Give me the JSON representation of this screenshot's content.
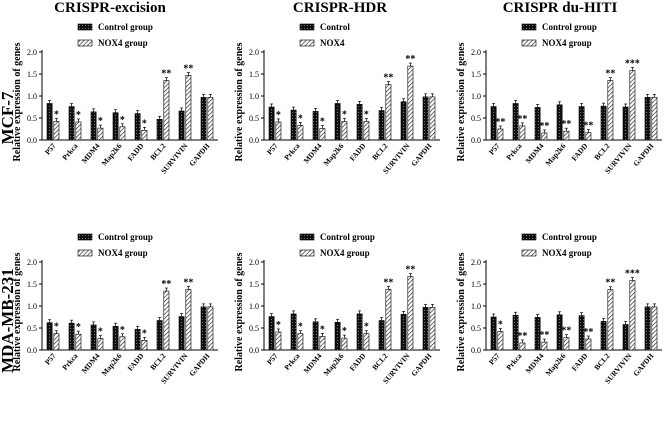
{
  "figure": {
    "column_titles": [
      "CRISPR-excision",
      "CRISPR-HDR",
      "CRISPR du-HITI"
    ],
    "row_labels": [
      "MCF-7",
      "MDA-MB-231"
    ]
  },
  "chart_data": [
    {
      "id": "mcf7-excision",
      "type": "bar",
      "title": "CRISPR-excision",
      "row": "MCF-7",
      "ylabel": "Relative expression of genes",
      "ylim": [
        0,
        2.0
      ],
      "yticks": [
        "0.0",
        "0.5",
        "1.0",
        "1.5",
        "2.0"
      ],
      "categories": [
        "P57",
        "Prkca",
        "MDM4",
        "Map2k6",
        "FADD",
        "BCL2",
        "SURVIVIN",
        "GAPDH"
      ],
      "series": [
        {
          "name": "Control group",
          "values": [
            0.83,
            0.76,
            0.64,
            0.62,
            0.6,
            0.47,
            0.66,
            0.97
          ]
        },
        {
          "name": "NOX4 group",
          "values": [
            0.42,
            0.41,
            0.27,
            0.3,
            0.22,
            1.35,
            1.47,
            0.97
          ]
        }
      ],
      "significance": [
        "*",
        "*",
        "*",
        "*",
        "*",
        "**",
        "**",
        ""
      ]
    },
    {
      "id": "mcf7-hdr",
      "type": "bar",
      "title": "CRISPR-HDR",
      "row": "MCF-7",
      "ylabel": "Relative expression of genes",
      "ylim": [
        0,
        2.0
      ],
      "yticks": [
        "0.0",
        "0.5",
        "1.0",
        "1.5",
        "2.0"
      ],
      "categories": [
        "P57",
        "Prkca",
        "MDM4",
        "Map2k6",
        "FADD",
        "BCL2",
        "SURVIVIN",
        "GAPDH"
      ],
      "series": [
        {
          "name": "Control",
          "values": [
            0.75,
            0.68,
            0.65,
            0.83,
            0.81,
            0.67,
            0.87,
            0.98
          ]
        },
        {
          "name": "NOX4",
          "values": [
            0.41,
            0.33,
            0.26,
            0.42,
            0.42,
            1.26,
            1.68,
            0.98
          ]
        }
      ],
      "significance": [
        "*",
        "*",
        "*",
        "*",
        "*",
        "**",
        "**",
        ""
      ]
    },
    {
      "id": "mcf7-duhiti",
      "type": "bar",
      "title": "CRISPR du-HITI",
      "row": "MCF-7",
      "ylabel": "Relative expression of genes",
      "ylim": [
        0,
        2.0
      ],
      "yticks": [
        "0.0",
        "0.5",
        "1.0",
        "1.5",
        "2.0"
      ],
      "categories": [
        "P57",
        "Prkca",
        "MDM4",
        "Map2k6",
        "FADD",
        "BCL2",
        "SURVIVIN",
        "GAPDH"
      ],
      "series": [
        {
          "name": "Control group",
          "values": [
            0.76,
            0.83,
            0.74,
            0.8,
            0.76,
            0.77,
            0.75,
            0.97
          ]
        },
        {
          "name": "NOX4 group",
          "values": [
            0.25,
            0.32,
            0.16,
            0.2,
            0.17,
            1.35,
            1.58,
            0.97
          ]
        }
      ],
      "significance": [
        "**",
        "**",
        "**",
        "**",
        "**",
        "**",
        "***",
        ""
      ]
    },
    {
      "id": "mda-excision",
      "type": "bar",
      "title": "CRISPR-excision",
      "row": "MDA-MB-231",
      "ylabel": "Relative expression of genes",
      "ylim": [
        0,
        2.0
      ],
      "yticks": [
        "0.0",
        "0.5",
        "1.0",
        "1.5",
        "2.0"
      ],
      "categories": [
        "P57",
        "Prkca",
        "MDM4",
        "Map2k6",
        "FADD",
        "BCL2",
        "SURVIVIN",
        "GAPDH"
      ],
      "series": [
        {
          "name": "Control group",
          "values": [
            0.62,
            0.61,
            0.57,
            0.54,
            0.47,
            0.67,
            0.76,
            0.98
          ]
        },
        {
          "name": "NOX4 group",
          "values": [
            0.37,
            0.36,
            0.26,
            0.3,
            0.22,
            1.34,
            1.38,
            0.98
          ]
        }
      ],
      "significance": [
        "*",
        "*",
        "*",
        "*",
        "*",
        "**",
        "**",
        ""
      ]
    },
    {
      "id": "mda-hdr",
      "type": "bar",
      "title": "CRISPR-HDR",
      "row": "MDA-MB-231",
      "ylabel": "Relative expression of genes",
      "ylim": [
        0,
        2.0
      ],
      "yticks": [
        "0.0",
        "0.5",
        "1.0",
        "1.5",
        "2.0"
      ],
      "categories": [
        "P57",
        "Prkca",
        "MDM4",
        "Map2k6",
        "FADD",
        "BCL2",
        "SURVIVIN",
        "GAPDH"
      ],
      "series": [
        {
          "name": "Control group",
          "values": [
            0.76,
            0.82,
            0.64,
            0.63,
            0.82,
            0.67,
            0.81,
            0.97
          ]
        },
        {
          "name": "NOX4 group",
          "values": [
            0.41,
            0.37,
            0.31,
            0.27,
            0.37,
            1.38,
            1.67,
            0.97
          ]
        }
      ],
      "significance": [
        "*",
        "*",
        "*",
        "*",
        "*",
        "**",
        "**",
        ""
      ]
    },
    {
      "id": "mda-duhiti",
      "type": "bar",
      "title": "CRISPR du-HITI",
      "row": "MDA-MB-231",
      "ylabel": "Relative expression of genes",
      "ylim": [
        0,
        2.0
      ],
      "yticks": [
        "0.0",
        "0.5",
        "1.0",
        "1.5",
        "2.0"
      ],
      "categories": [
        "P57",
        "Prkca",
        "MDM4",
        "Map2k6",
        "FADD",
        "BCL2",
        "SURVIVIN",
        "GAPDH"
      ],
      "series": [
        {
          "name": "Control group",
          "values": [
            0.75,
            0.79,
            0.74,
            0.8,
            0.78,
            0.65,
            0.58,
            0.98
          ]
        },
        {
          "name": "NOX4 group",
          "values": [
            0.42,
            0.16,
            0.18,
            0.28,
            0.25,
            1.37,
            1.58,
            0.98
          ]
        }
      ],
      "significance": [
        "*",
        "**",
        "**",
        "**",
        "**",
        "**",
        "***",
        ""
      ]
    }
  ]
}
